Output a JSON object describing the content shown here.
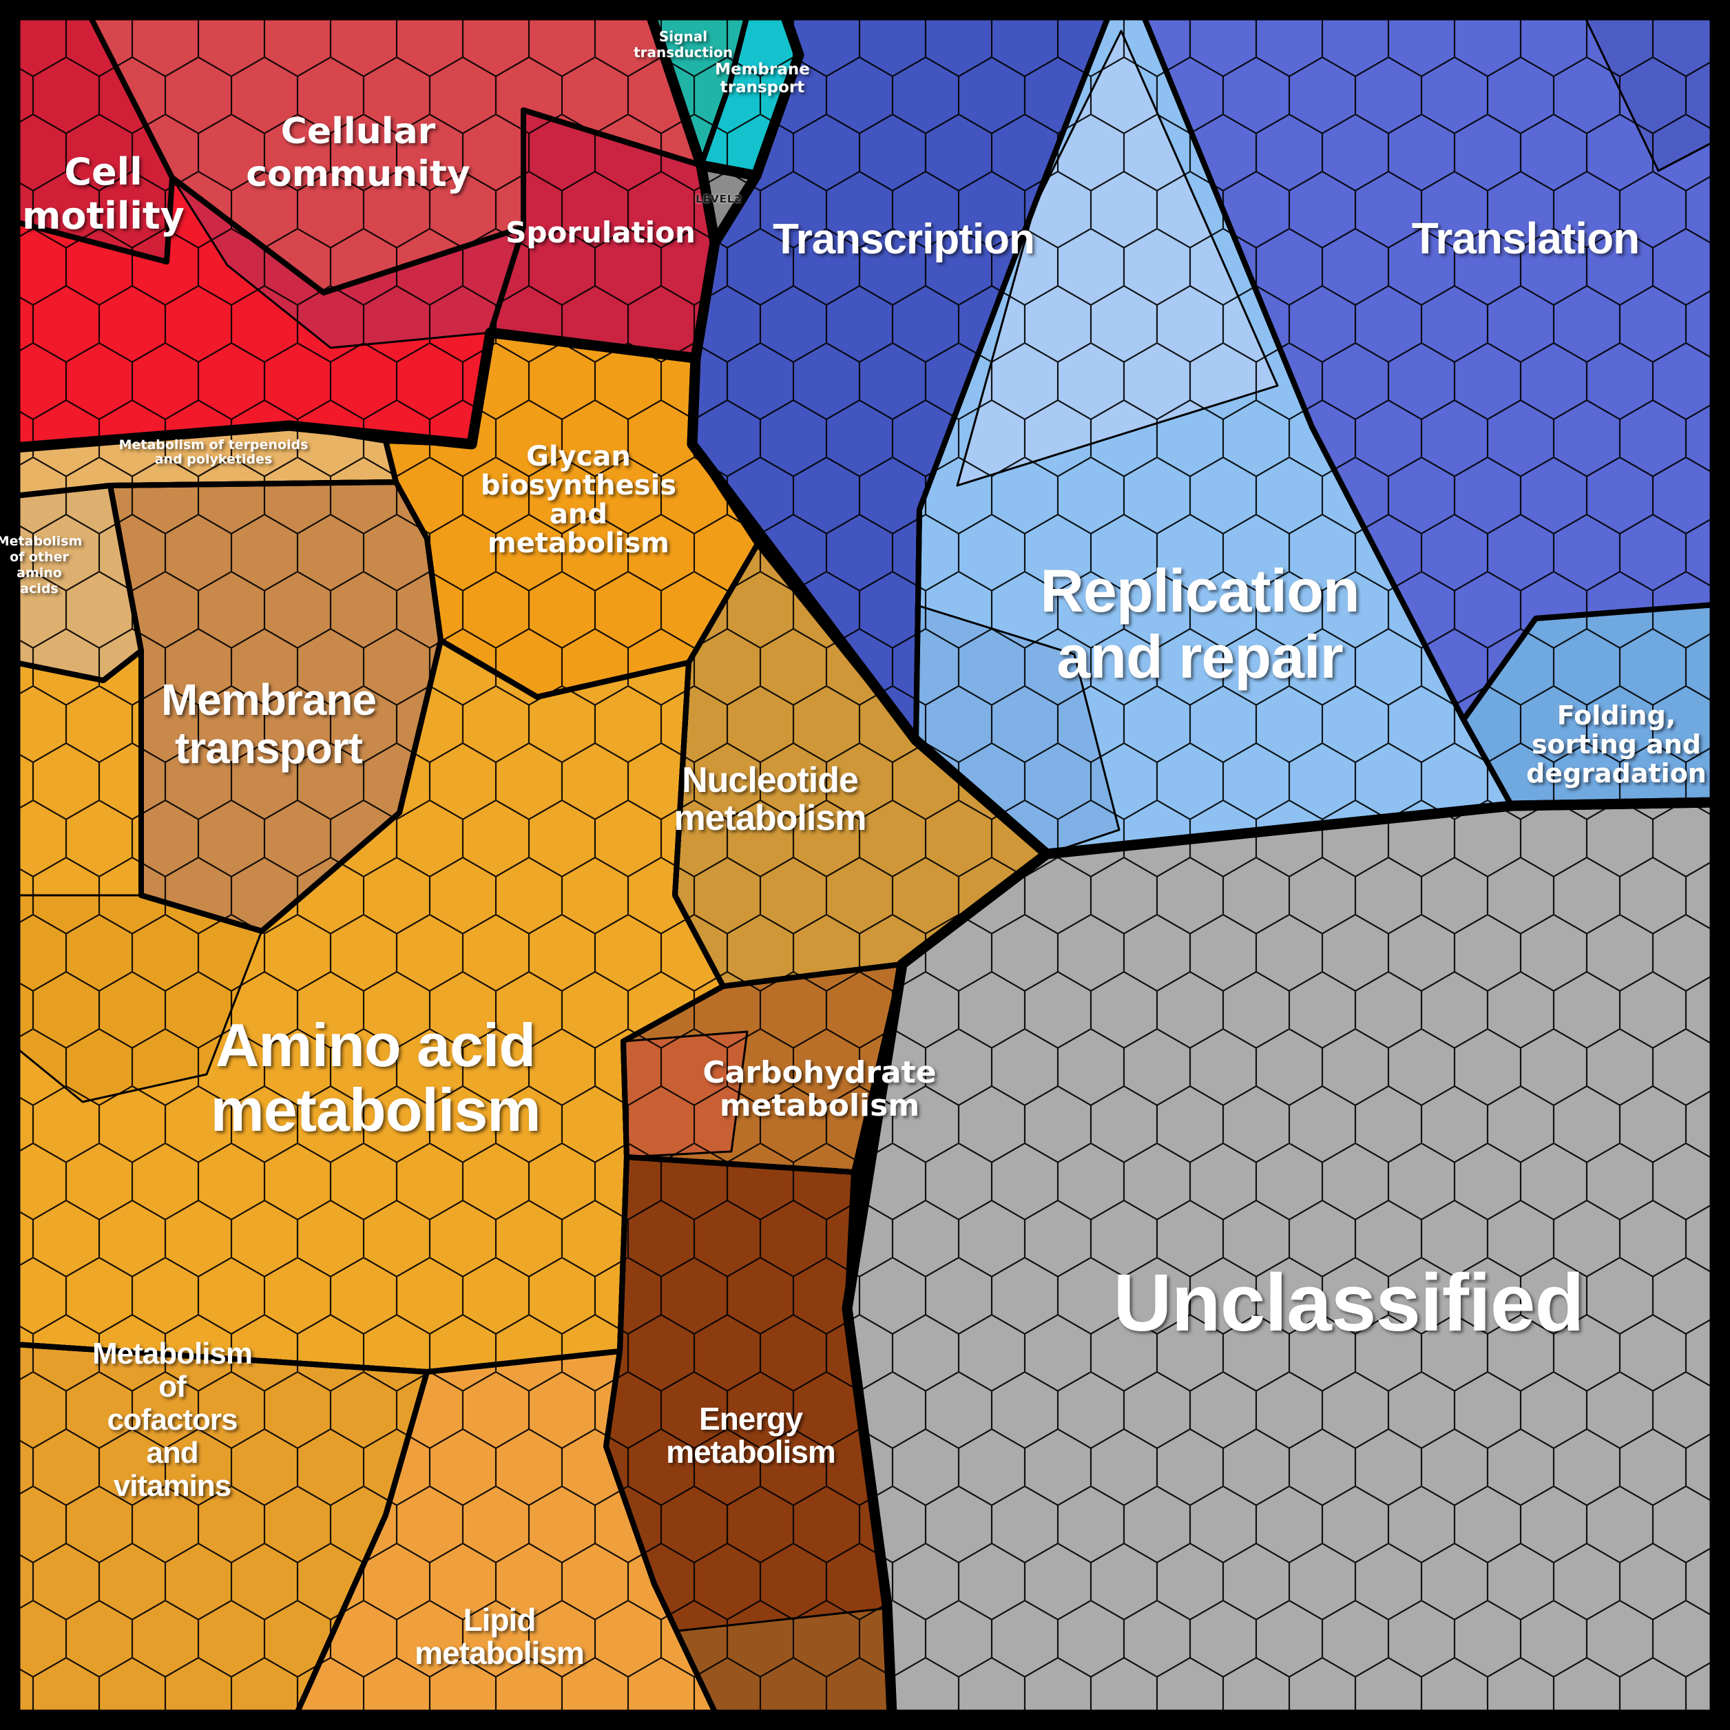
{
  "canvas": {
    "background": "#000000",
    "border_color": "#000000"
  },
  "style": {
    "label_color": "#ffffff",
    "cell_line_color": "#000000"
  },
  "chart_data": {
    "type": "voronoi_treemap",
    "description_visible_text_only": true,
    "legend": "none",
    "clusters": [
      {
        "id": "red",
        "color_group": "#f2192b"
      },
      {
        "id": "teal",
        "color_group": "#13c2cc"
      },
      {
        "id": "wedge",
        "color_group": "#8c8c8c"
      },
      {
        "id": "blue",
        "color_group": "#5a69d6"
      },
      {
        "id": "orange",
        "color_group": "#efa727"
      },
      {
        "id": "gray",
        "color_group": "#ababab"
      }
    ],
    "regions": [
      {
        "id": "cell_motility",
        "cluster": "red",
        "label": "Cell motility",
        "lines": [
          "Cell",
          "motility"
        ],
        "color": "#f2192b",
        "approx_area_pct": 3.6
      },
      {
        "id": "community",
        "cluster": "red",
        "label": "Cellular community",
        "lines": [
          "Cellular",
          "community"
        ],
        "color": "#d7454d",
        "approx_area_pct": 4.1
      },
      {
        "id": "sporulation",
        "cluster": "red",
        "label": "Sporulation",
        "lines": [
          "Sporulation"
        ],
        "color": "#cb2342",
        "approx_area_pct": 2.6
      },
      {
        "id": "signal",
        "cluster": "teal",
        "label": "Signal transduction",
        "lines": [
          "Signal",
          "transduction"
        ],
        "color": "#20b4a6",
        "approx_area_pct": 0.4
      },
      {
        "id": "mem_teal",
        "cluster": "teal",
        "label": "Membrane transport",
        "lines": [
          "Membrane",
          "transport"
        ],
        "color": "#13c2cc",
        "approx_area_pct": 0.9
      },
      {
        "id": "level2_wedge",
        "cluster": "wedge",
        "label": "LEVEL2",
        "lines": [
          "LEVEL2"
        ],
        "color": "#8c8c8c",
        "approx_area_pct": 0.15
      },
      {
        "id": "transcription",
        "cluster": "blue",
        "label": "Transcription",
        "lines": [
          "Transcription"
        ],
        "color": "#4355c0",
        "approx_area_pct": 5.5
      },
      {
        "id": "translation",
        "cluster": "blue",
        "label": "Translation",
        "lines": [
          "Translation"
        ],
        "color": "#5a69d6",
        "approx_area_pct": 7.0
      },
      {
        "id": "replication",
        "cluster": "blue",
        "label": "Replication and repair",
        "lines": [
          "Replication",
          "and repair"
        ],
        "color": "#8ec1f2",
        "approx_area_pct": 9.5
      },
      {
        "id": "folding",
        "cluster": "blue",
        "label": "Folding, sorting and degradation",
        "lines": [
          "Folding,",
          "sorting and",
          "degradation"
        ],
        "color": "#70a8e0",
        "approx_area_pct": 2.2
      },
      {
        "id": "terpenoids",
        "cluster": "orange",
        "label": "Metabolism of terpenoids and polyketides",
        "lines": [
          "Metabolism of terpenoids",
          "and polyketides"
        ],
        "color": "#e9b366",
        "approx_area_pct": 1.0
      },
      {
        "id": "other_amino",
        "cluster": "orange",
        "label": "Metabolism of other amino acids",
        "lines": [
          "Metabolism",
          "of other",
          "amino",
          "acids"
        ],
        "color": "#deb06f",
        "approx_area_pct": 1.1
      },
      {
        "id": "mt_orange",
        "cluster": "orange",
        "label": "Membrane transport",
        "lines": [
          "Membrane",
          "transport"
        ],
        "color": "#c9894a",
        "approx_area_pct": 5.8
      },
      {
        "id": "glycan",
        "cluster": "orange",
        "label": "Glycan biosynthesis and metabolism",
        "lines": [
          "Glycan",
          "biosynthesis",
          "and",
          "metabolism"
        ],
        "color": "#f29d18",
        "approx_area_pct": 3.2
      },
      {
        "id": "nucleotide",
        "cluster": "orange",
        "label": "Nucleotide metabolism",
        "lines": [
          "Nucleotide",
          "metabolism"
        ],
        "color": "#cf9737",
        "approx_area_pct": 3.6
      },
      {
        "id": "amino",
        "cluster": "orange",
        "label": "Amino acid metabolism",
        "lines": [
          "Amino acid",
          "metabolism"
        ],
        "color": "#efa727",
        "approx_area_pct": 9.5
      },
      {
        "id": "carb",
        "cluster": "orange",
        "label": "Carbohydrate metabolism",
        "lines": [
          "Carbohydrate",
          "metabolism"
        ],
        "color": "#ba6f28",
        "approx_area_pct": 4.3
      },
      {
        "id": "cofactors",
        "cluster": "orange",
        "label": "Metabolism of cofactors and vitamins",
        "lines": [
          "Metabolism",
          "of",
          "cofactors",
          "and",
          "vitamins"
        ],
        "color": "#e69e2b",
        "approx_area_pct": 5.5
      },
      {
        "id": "lipid",
        "cluster": "orange",
        "label": "Lipid metabolism",
        "lines": [
          "Lipid",
          "metabolism"
        ],
        "color": "#efa03d",
        "approx_area_pct": 3.8
      },
      {
        "id": "energy",
        "cluster": "orange",
        "label": "Energy metabolism",
        "lines": [
          "Energy",
          "metabolism"
        ],
        "color": "#8d3c10",
        "approx_area_pct": 4.6
      },
      {
        "id": "unclassified",
        "cluster": "gray",
        "label": "Unclassified",
        "lines": [
          "Unclassified"
        ],
        "color": "#ababab",
        "approx_area_pct": 21.7
      }
    ],
    "shades": [
      {
        "id": "cm_dark",
        "cluster": "red",
        "color": "#d11f38"
      },
      {
        "id": "crimson_mid",
        "cluster": "red",
        "color": "#ce2847"
      },
      {
        "id": "repl_pale",
        "cluster": "blue",
        "color": "#a9caf4"
      },
      {
        "id": "repl_mid",
        "cluster": "blue",
        "color": "#7fb1e6"
      },
      {
        "id": "transl_corner",
        "cluster": "blue",
        "color": "#4e5dc6"
      },
      {
        "id": "carb_rust",
        "cluster": "orange",
        "color": "#c96034"
      },
      {
        "id": "energy_sub",
        "cluster": "orange",
        "color": "#98561e"
      },
      {
        "id": "amino_sub1",
        "cluster": "orange",
        "color": "#e79f22"
      }
    ],
    "texture": {
      "cell_shape": "hexagonal mosaic of small polygonal cells",
      "line_color": "#000000"
    }
  }
}
